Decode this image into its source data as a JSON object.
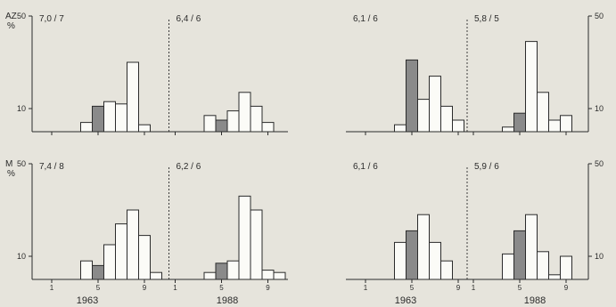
{
  "chart_data": [
    {
      "type": "histogram",
      "y_unit_label_top": "AZ",
      "y_unit_label_bottom": "%",
      "ylim": [
        0,
        50
      ],
      "y_ticks": [
        10,
        50
      ],
      "x_ticks": [
        1,
        5,
        9
      ],
      "xlabel": "",
      "panels": [
        {
          "label": "7,0 / 7",
          "highlight": 5,
          "values": [
            0,
            0,
            0,
            4,
            11,
            13,
            12,
            30,
            3,
            0
          ]
        },
        {
          "label": "6,4 / 6",
          "highlight": 5,
          "values": [
            0,
            0,
            0,
            7,
            5,
            9,
            17,
            11,
            4,
            0
          ]
        }
      ]
    },
    {
      "type": "histogram",
      "y_unit_label_top": "",
      "y_unit_label_bottom": "",
      "ylim": [
        0,
        50
      ],
      "y_ticks": [
        10,
        50
      ],
      "x_ticks": [
        1,
        5,
        9
      ],
      "xlabel": "",
      "panels": [
        {
          "label": "6,1 / 6",
          "highlight": 5,
          "values": [
            0,
            0,
            0,
            3,
            31,
            14,
            24,
            11,
            5,
            0
          ]
        },
        {
          "label": "5,8 / 5",
          "highlight": 5,
          "values": [
            0,
            0,
            0,
            2,
            8,
            39,
            17,
            5,
            7,
            0
          ]
        }
      ]
    },
    {
      "type": "histogram",
      "y_unit_label_top": "M",
      "y_unit_label_bottom": "%",
      "ylim": [
        0,
        50
      ],
      "y_ticks": [
        10,
        50
      ],
      "x_ticks": [
        1,
        5,
        9
      ],
      "xlabel": "1963          1988",
      "panels": [
        {
          "label": "7,4 / 8",
          "highlight": 5,
          "values": [
            0,
            0,
            0,
            8,
            6,
            15,
            24,
            30,
            19,
            3
          ]
        },
        {
          "label": "6,2 / 6",
          "highlight": 5,
          "values": [
            0,
            0,
            0,
            3,
            7,
            8,
            36,
            30,
            4,
            3
          ]
        }
      ]
    },
    {
      "type": "histogram",
      "y_unit_label_top": "",
      "y_unit_label_bottom": "",
      "ylim": [
        0,
        50
      ],
      "y_ticks": [
        10,
        50
      ],
      "x_ticks": [
        1,
        5,
        9
      ],
      "xlabel": "1963          1988",
      "panels": [
        {
          "label": "6,1 / 6",
          "highlight": 5,
          "values": [
            0,
            0,
            0,
            16,
            21,
            28,
            16,
            8,
            0,
            0
          ]
        },
        {
          "label": "5,9 / 6",
          "highlight": 5,
          "values": [
            0,
            0,
            0,
            11,
            21,
            28,
            12,
            2,
            10,
            0
          ]
        }
      ]
    }
  ],
  "axis_year_labels": [
    "1963",
    "1988",
    "1963",
    "1988"
  ],
  "fill_highlight": "#8a8a8a",
  "fill_bar": "#fbfbf7",
  "ink": "#2b2b2b"
}
